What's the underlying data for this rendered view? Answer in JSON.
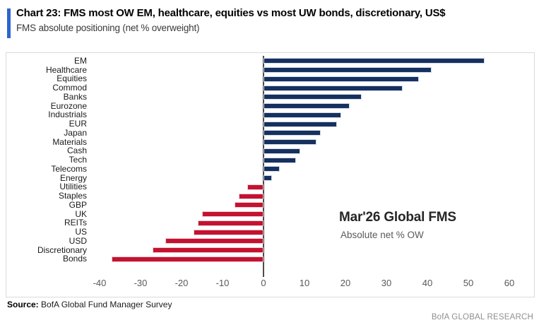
{
  "header": {
    "title": "Chart 23: FMS most OW EM, healthcare, equities vs most UW bonds, discretionary, US$",
    "subtitle": "FMS absolute positioning (net % overweight)",
    "accent_color": "#2b65cf"
  },
  "chart_data": {
    "type": "bar",
    "orientation": "horizontal",
    "categories": [
      "EM",
      "Healthcare",
      "Equities",
      "Commod",
      "Banks",
      "Eurozone",
      "Industrials",
      "EUR",
      "Japan",
      "Materials",
      "Cash",
      "Tech",
      "Telecoms",
      "Energy",
      "Utilities",
      "Staples",
      "GBP",
      "UK",
      "REITs",
      "US",
      "USD",
      "Discretionary",
      "Bonds"
    ],
    "values": [
      54,
      41,
      38,
      34,
      24,
      21,
      19,
      18,
      14,
      13,
      9,
      8,
      4,
      2,
      -4,
      -6,
      -7,
      -15,
      -16,
      -17,
      -24,
      -27,
      -37
    ],
    "title": "",
    "xlabel": "",
    "ylabel": "",
    "xlim": [
      -50,
      66
    ],
    "xticks": [
      -40,
      -30,
      -20,
      -10,
      0,
      10,
      20,
      30,
      40,
      50,
      60
    ],
    "grid": false,
    "legend": false,
    "annotation": {
      "title": "Mar'26 Global FMS",
      "subtitle": "Absolute net % OW"
    },
    "colors": {
      "positive": "#16305f",
      "negative": "#c41230",
      "axis_line": "#4d4d4d",
      "tick_text": "#595959"
    }
  },
  "footer": {
    "source_label": "Source:",
    "source_text": " BofA Global Fund Manager Survey",
    "branding": "BofA GLOBAL RESEARCH"
  }
}
